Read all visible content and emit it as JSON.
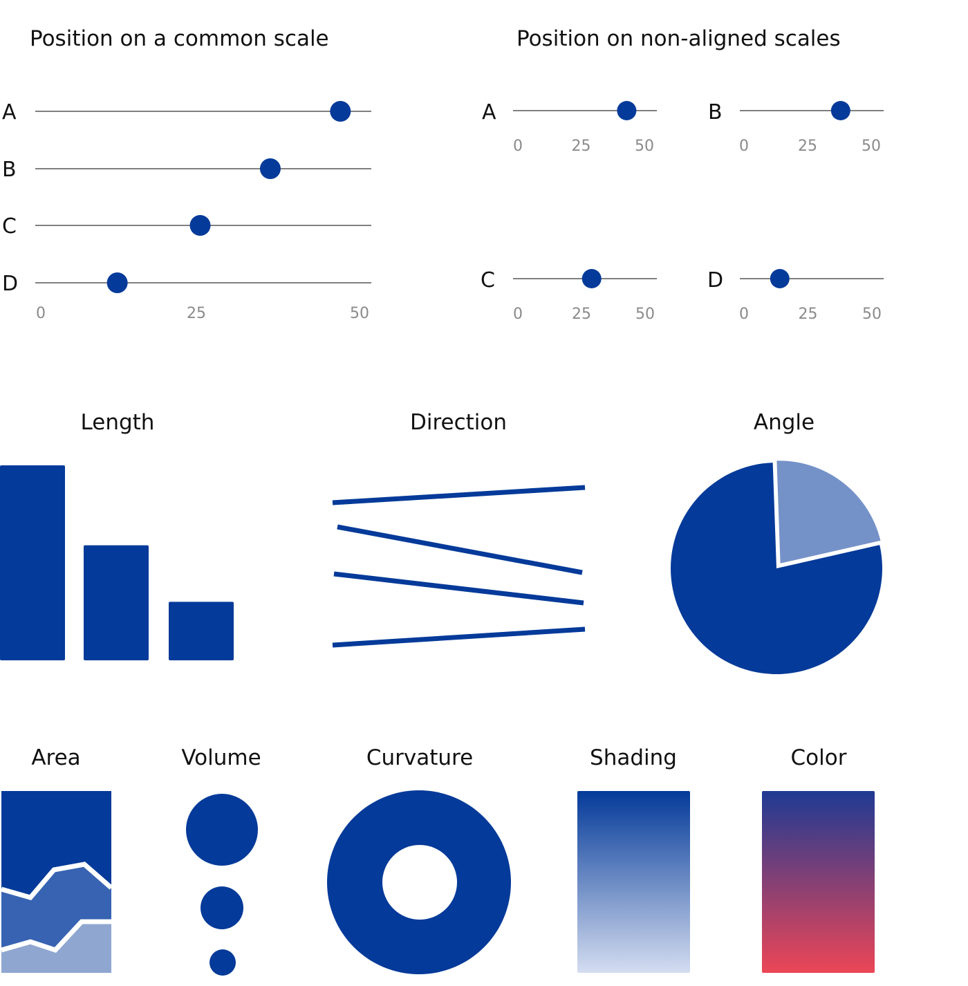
{
  "colors": {
    "primary": "#043A99",
    "light": "#7592C8",
    "medium": "#3763B2",
    "pale": "#8FA6D0",
    "axis": "#555555",
    "tick": "#8A8A8A",
    "text": "#111111",
    "shading_start": "#043A99",
    "shading_end": "#D4DDF0",
    "color_start": "#1F3A93",
    "color_end": "#EC4656"
  },
  "sections": {
    "common_scale": {
      "title": "Position on a common scale",
      "ticks": [
        "0",
        "25",
        "50"
      ],
      "rows": [
        {
          "label": "A",
          "value": 47
        },
        {
          "label": "B",
          "value": 36
        },
        {
          "label": "C",
          "value": 25
        },
        {
          "label": "D",
          "value": 12
        }
      ]
    },
    "non_aligned": {
      "title": "Position on non-aligned scales",
      "ticks": [
        "0",
        "25",
        "50"
      ],
      "panels": [
        {
          "label": "A",
          "value": 43
        },
        {
          "label": "B",
          "value": 38
        },
        {
          "label": "C",
          "value": 29
        },
        {
          "label": "D",
          "value": 14
        }
      ]
    },
    "length": {
      "title": "Length",
      "values": [
        100,
        59,
        30
      ]
    },
    "direction": {
      "title": "Direction"
    },
    "angle": {
      "title": "Angle",
      "slices": [
        78,
        22
      ]
    },
    "area": {
      "title": "Area"
    },
    "volume": {
      "title": "Volume"
    },
    "curvature": {
      "title": "Curvature"
    },
    "shading": {
      "title": "Shading"
    },
    "color": {
      "title": "Color"
    }
  }
}
